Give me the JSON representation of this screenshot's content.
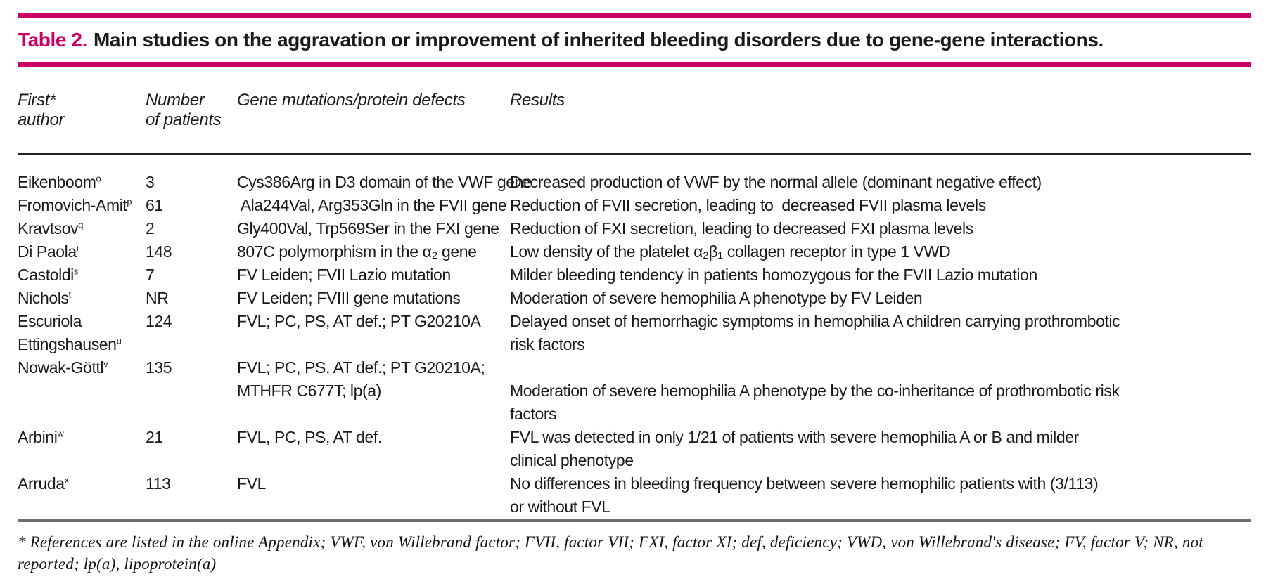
{
  "colors": {
    "accent_magenta": "#CC0066",
    "text": "#1a1a1a",
    "header_rule_black": "#232323",
    "footer_rule_gray": "#6e6e6e"
  },
  "title": {
    "label": "Table 2.",
    "text": "Main studies on the aggravation or improvement of inherited bleeding disorders due to gene-gene interactions."
  },
  "table": {
    "headers": [
      {
        "lines": [
          "First*",
          "author"
        ]
      },
      {
        "lines": [
          "Number",
          "of patients"
        ]
      },
      {
        "lines": [
          "Gene mutations/protein defects"
        ]
      },
      {
        "lines": [
          "Results"
        ]
      }
    ],
    "rows": [
      {
        "author": [
          "Eikenboom^o"
        ],
        "patients": [
          "3"
        ],
        "genes": [
          "Cys386Arg in D3 domain of the VWF gene"
        ],
        "results": [
          "Decreased production of VWF by the normal allele (dominant negative effect)"
        ]
      },
      {
        "author": [
          "Fromovich-Amit^p"
        ],
        "patients": [
          "61"
        ],
        "genes": [
          " Ala244Val, Arg353Gln in the FVII gene"
        ],
        "results": [
          "Reduction of FVII secretion, leading to  decreased FVII plasma levels"
        ]
      },
      {
        "author": [
          "Kravtsov^q"
        ],
        "patients": [
          "2"
        ],
        "genes": [
          "Gly400Val, Trp569Ser in the FXI gene"
        ],
        "results": [
          "Reduction of FXI secretion, leading to decreased FXI plasma levels"
        ]
      },
      {
        "author": [
          "Di Paola^r"
        ],
        "patients": [
          "148"
        ],
        "genes": [
          "807C polymorphism in the α₂ gene"
        ],
        "results": [
          "Low density of the platelet α₂β₁ collagen receptor in type 1 VWD"
        ]
      },
      {
        "author": [
          "Castoldi^s"
        ],
        "patients": [
          "7"
        ],
        "genes": [
          "FV Leiden; FVII Lazio mutation"
        ],
        "results": [
          "Milder bleeding tendency in patients homozygous for the FVII Lazio mutation"
        ]
      },
      {
        "author": [
          "Nichols^t"
        ],
        "patients": [
          "NR"
        ],
        "genes": [
          "FV Leiden; FVIII gene mutations"
        ],
        "results": [
          "Moderation of severe hemophilia A phenotype by FV Leiden"
        ]
      },
      {
        "author": [
          "Escuriola",
          "Ettingshausen^u"
        ],
        "patients": [
          "124"
        ],
        "genes": [
          "FVL; PC, PS, AT def.; PT G20210A"
        ],
        "results": [
          "Delayed onset of hemorrhagic symptoms in hemophilia A children carrying prothrombotic",
          "risk factors"
        ]
      },
      {
        "author": [
          "Nowak-Göttl^v"
        ],
        "patients": [
          "135"
        ],
        "genes": [
          "FVL; PC, PS, AT def.; PT G20210A;",
          "MTHFR C677T; lp(a)"
        ],
        "results": [
          "",
          "Moderation of severe hemophilia A phenotype by the co-inheritance of prothrombotic risk",
          "factors"
        ]
      },
      {
        "author": [
          "Arbini^w"
        ],
        "patients": [
          "21"
        ],
        "genes": [
          "FVL, PC, PS, AT def."
        ],
        "results": [
          "FVL was detected in only 1/21 of patients with severe hemophilia A or B and milder",
          "clinical phenotype"
        ]
      },
      {
        "author": [
          "Arruda^x"
        ],
        "patients": [
          "113"
        ],
        "genes": [
          "FVL"
        ],
        "results": [
          "No differences in bleeding frequency between severe hemophilic patients with (3/113)",
          "or without FVL"
        ]
      }
    ]
  },
  "footnote": "* References are listed in the online Appendix; VWF, von Willebrand factor; FVII, factor VII; FXI, factor XI; def, deficiency; VWD, von Willebrand's disease; FV, factor V; NR, not reported; lp(a), lipoprotein(a)"
}
